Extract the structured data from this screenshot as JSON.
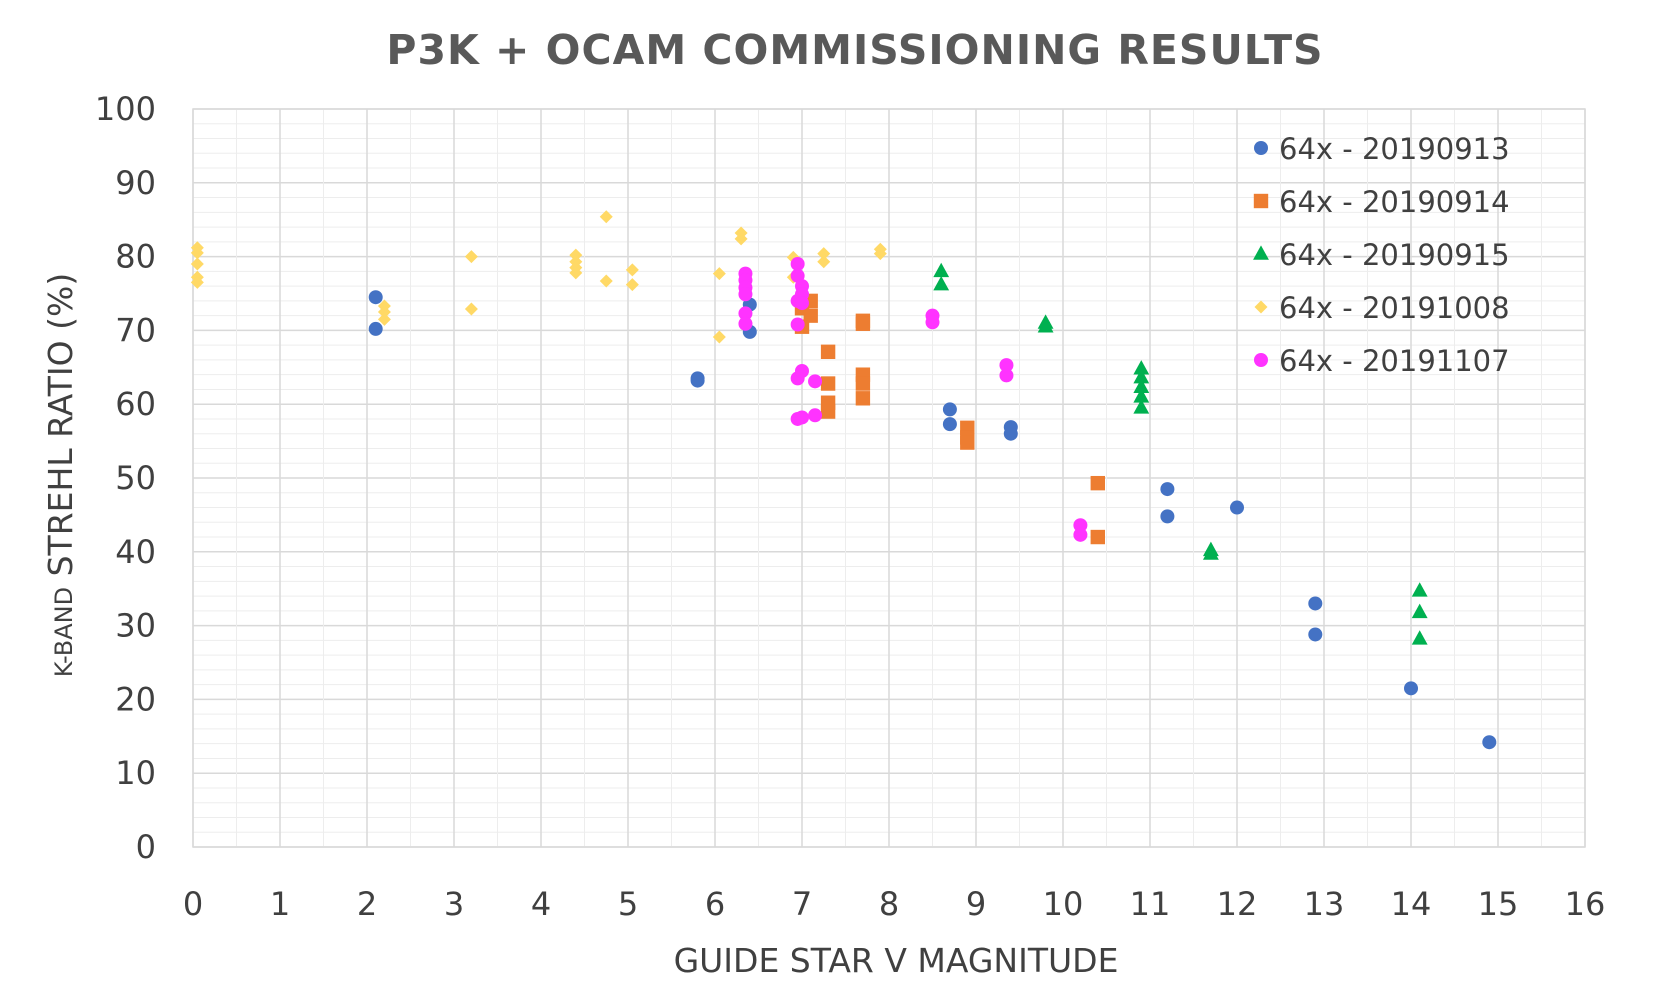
{
  "chart_data": {
    "type": "scatter",
    "title": "P3K + OCAM COMMISSIONING RESULTS",
    "xlabel": "GUIDE STAR V MAGNITUDE",
    "ylabel_prefix": "K-BAND",
    "ylabel_main": " STREHL RATIO (%)",
    "xlim": [
      0,
      16
    ],
    "ylim": [
      0,
      100
    ],
    "xticks": [
      "0",
      "1",
      "2",
      "3",
      "4",
      "5",
      "6",
      "7",
      "8",
      "9",
      "10",
      "11",
      "12",
      "13",
      "14",
      "15",
      "16"
    ],
    "yticks": [
      "0",
      "10",
      "20",
      "30",
      "40",
      "50",
      "60",
      "70",
      "80",
      "90",
      "100"
    ],
    "grid": true,
    "legend_position": "top-right",
    "series": [
      {
        "name": "64x - 20190913",
        "marker": "circle",
        "color": "#4472C4",
        "points": [
          [
            2.1,
            74.5
          ],
          [
            2.1,
            70.2
          ],
          [
            5.8,
            63.5
          ],
          [
            5.8,
            63.2
          ],
          [
            6.4,
            73.5
          ],
          [
            6.4,
            69.8
          ],
          [
            8.7,
            59.3
          ],
          [
            8.7,
            57.3
          ],
          [
            9.4,
            56.9
          ],
          [
            9.4,
            56.0
          ],
          [
            11.2,
            48.5
          ],
          [
            11.2,
            44.8
          ],
          [
            12.0,
            46.0
          ],
          [
            12.9,
            33.0
          ],
          [
            12.9,
            28.8
          ],
          [
            14.0,
            21.5
          ],
          [
            14.9,
            14.2
          ]
        ]
      },
      {
        "name": "64x - 20190914",
        "marker": "square",
        "color": "#ED7D31",
        "points": [
          [
            7.0,
            73.0
          ],
          [
            7.0,
            70.5
          ],
          [
            7.1,
            74.0
          ],
          [
            7.1,
            72.0
          ],
          [
            7.3,
            67.1
          ],
          [
            7.3,
            62.8
          ],
          [
            7.3,
            60.2
          ],
          [
            7.3,
            59.0
          ],
          [
            7.7,
            71.3
          ],
          [
            7.7,
            70.9
          ],
          [
            7.7,
            64.0
          ],
          [
            7.7,
            62.8
          ],
          [
            7.7,
            60.8
          ],
          [
            8.9,
            56.8
          ],
          [
            8.9,
            55.5
          ],
          [
            8.9,
            54.8
          ],
          [
            10.4,
            49.3
          ],
          [
            10.4,
            42.0
          ]
        ]
      },
      {
        "name": "64x - 20190915",
        "marker": "triangle",
        "color": "#00B050",
        "points": [
          [
            8.6,
            78.0
          ],
          [
            8.6,
            76.2
          ],
          [
            9.8,
            71.0
          ],
          [
            9.8,
            70.5
          ],
          [
            10.9,
            64.8
          ],
          [
            10.9,
            63.6
          ],
          [
            10.9,
            62.3
          ],
          [
            10.9,
            61.0
          ],
          [
            10.9,
            59.5
          ],
          [
            11.7,
            40.2
          ],
          [
            11.7,
            39.7
          ],
          [
            14.1,
            34.7
          ],
          [
            14.1,
            31.8
          ],
          [
            14.1,
            28.2
          ]
        ]
      },
      {
        "name": "64x - 20191008",
        "marker": "diamond",
        "color": "#FFD966",
        "points": [
          [
            0.05,
            81.2
          ],
          [
            0.05,
            80.5
          ],
          [
            0.05,
            79.0
          ],
          [
            0.05,
            77.2
          ],
          [
            0.05,
            76.5
          ],
          [
            2.2,
            73.3
          ],
          [
            2.2,
            72.5
          ],
          [
            2.2,
            71.5
          ],
          [
            3.2,
            80.0
          ],
          [
            3.2,
            72.9
          ],
          [
            4.4,
            80.2
          ],
          [
            4.4,
            79.3
          ],
          [
            4.4,
            78.5
          ],
          [
            4.4,
            77.8
          ],
          [
            4.75,
            85.4
          ],
          [
            4.75,
            76.7
          ],
          [
            5.05,
            78.2
          ],
          [
            5.05,
            76.2
          ],
          [
            6.05,
            77.7
          ],
          [
            6.05,
            69.1
          ],
          [
            6.3,
            83.2
          ],
          [
            6.3,
            82.4
          ],
          [
            6.9,
            79.9
          ],
          [
            6.9,
            77.2
          ],
          [
            7.25,
            80.4
          ],
          [
            7.25,
            79.3
          ],
          [
            7.9,
            81.0
          ],
          [
            7.9,
            80.4
          ]
        ]
      },
      {
        "name": "64x - 20191107",
        "marker": "circle",
        "color": "#FF33FF",
        "points": [
          [
            6.35,
            77.7
          ],
          [
            6.35,
            76.8
          ],
          [
            6.35,
            75.8
          ],
          [
            6.35,
            74.9
          ],
          [
            6.35,
            72.3
          ],
          [
            6.35,
            70.9
          ],
          [
            6.95,
            79.0
          ],
          [
            6.95,
            77.4
          ],
          [
            6.95,
            74.0
          ],
          [
            6.95,
            70.8
          ],
          [
            6.95,
            63.5
          ],
          [
            6.95,
            58.0
          ],
          [
            7.0,
            76.0
          ],
          [
            7.0,
            74.9
          ],
          [
            7.0,
            73.7
          ],
          [
            7.0,
            64.5
          ],
          [
            7.0,
            58.2
          ],
          [
            7.15,
            63.1
          ],
          [
            7.15,
            58.5
          ],
          [
            8.5,
            72.0
          ],
          [
            8.5,
            71.1
          ],
          [
            9.35,
            65.3
          ],
          [
            9.35,
            63.9
          ],
          [
            10.2,
            43.6
          ],
          [
            10.2,
            42.3
          ]
        ]
      }
    ]
  }
}
